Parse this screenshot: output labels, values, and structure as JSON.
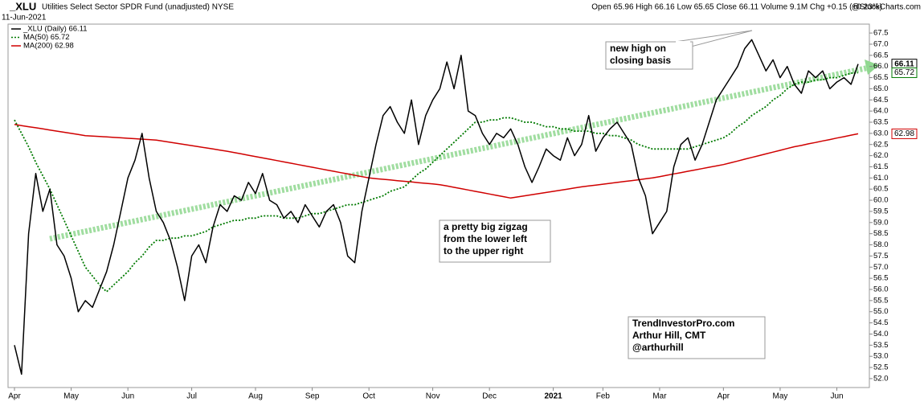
{
  "chart_data": {
    "type": "line",
    "title": "_XLU",
    "subtitle": "Utilities Select Sector SPDR Fund (unadjusted) NYSE",
    "date": "11-Jun-2021",
    "quote": "Open 65.96 High 66.16 Low 65.65 Close 66.11 Volume 9.1M Chg +0.15 (+0.23%)",
    "watermark": "@StockCharts.com",
    "categories": [
      "Apr",
      null,
      null,
      null,
      null,
      null,
      null,
      null,
      "May",
      null,
      null,
      null,
      null,
      null,
      null,
      null,
      "Jun",
      null,
      null,
      null,
      null,
      null,
      null,
      null,
      null,
      "Jul",
      null,
      null,
      null,
      null,
      null,
      null,
      null,
      null,
      "Aug",
      null,
      null,
      null,
      null,
      null,
      null,
      null,
      "Sep",
      null,
      null,
      null,
      null,
      null,
      null,
      null,
      "Oct",
      null,
      null,
      null,
      null,
      null,
      null,
      null,
      null,
      "Nov",
      null,
      null,
      null,
      null,
      null,
      null,
      null,
      "Dec",
      null,
      null,
      null,
      null,
      null,
      null,
      null,
      null,
      "2021",
      null,
      null,
      null,
      null,
      null,
      null,
      "Feb",
      null,
      null,
      null,
      null,
      null,
      null,
      null,
      "Mar",
      null,
      null,
      null,
      null,
      null,
      null,
      null,
      null,
      "Apr",
      null,
      null,
      null,
      null,
      null,
      null,
      null,
      "May",
      null,
      null,
      null,
      null,
      null,
      null,
      null,
      "Jun",
      null,
      null,
      null
    ],
    "series": [
      {
        "name": "_XLU (Daily) 66.11",
        "color": "#000000",
        "style": "solid",
        "values": [
          53.5,
          52.2,
          58.5,
          61.2,
          59.5,
          60.5,
          58.0,
          57.5,
          56.5,
          55.0,
          55.5,
          55.2,
          56.0,
          56.8,
          58.0,
          59.5,
          61.0,
          61.8,
          63.0,
          61.0,
          59.5,
          59.0,
          58.2,
          57.0,
          55.5,
          57.5,
          58.0,
          57.2,
          58.8,
          59.8,
          59.5,
          60.2,
          60.0,
          60.8,
          60.3,
          61.2,
          60.0,
          59.8,
          59.2,
          59.5,
          59.0,
          59.8,
          59.3,
          58.8,
          59.5,
          59.8,
          59.0,
          57.5,
          57.2,
          59.5,
          61.0,
          62.5,
          63.8,
          64.2,
          63.5,
          63.0,
          64.5,
          62.5,
          63.8,
          64.5,
          65.0,
          66.2,
          65.0,
          66.5,
          64.0,
          63.8,
          63.0,
          62.5,
          63.0,
          62.8,
          63.2,
          62.5,
          61.5,
          60.8,
          61.5,
          62.3,
          62.0,
          61.8,
          62.8,
          62.0,
          62.5,
          63.8,
          62.2,
          62.8,
          63.2,
          63.5,
          63.0,
          62.5,
          61.0,
          60.2,
          58.5,
          59.0,
          59.5,
          61.5,
          62.5,
          62.8,
          61.8,
          62.5,
          63.5,
          64.5,
          65.0,
          65.5,
          66.0,
          66.8,
          67.2,
          66.5,
          65.8,
          66.3,
          65.5,
          66.0,
          65.2,
          64.8,
          65.8,
          65.5,
          65.8,
          65.0,
          65.3,
          65.5,
          65.2,
          66.11
        ]
      },
      {
        "name": "MA(50) 65.72",
        "color": "#007a00",
        "style": "dotted",
        "values": [
          63.6,
          63.0,
          62.4,
          61.7,
          61.1,
          60.5,
          59.8,
          59.1,
          58.4,
          57.7,
          57.0,
          56.6,
          56.2,
          55.9,
          56.2,
          56.5,
          56.8,
          57.2,
          57.5,
          57.9,
          58.2,
          58.2,
          58.3,
          58.3,
          58.4,
          58.4,
          58.5,
          58.6,
          58.8,
          58.9,
          59.0,
          59.1,
          59.1,
          59.2,
          59.2,
          59.3,
          59.3,
          59.3,
          59.2,
          59.2,
          59.2,
          59.3,
          59.4,
          59.4,
          59.5,
          59.6,
          59.7,
          59.8,
          59.8,
          59.9,
          60.0,
          60.1,
          60.2,
          60.4,
          60.5,
          60.6,
          60.9,
          61.2,
          61.4,
          61.7,
          62.0,
          62.3,
          62.6,
          62.9,
          63.2,
          63.5,
          63.5,
          63.6,
          63.6,
          63.7,
          63.7,
          63.6,
          63.5,
          63.5,
          63.4,
          63.3,
          63.3,
          63.2,
          63.2,
          63.1,
          63.1,
          63.1,
          63.0,
          63.0,
          62.9,
          62.9,
          62.8,
          62.7,
          62.5,
          62.4,
          62.3,
          62.3,
          62.3,
          62.3,
          62.3,
          62.3,
          62.4,
          62.5,
          62.6,
          62.7,
          62.8,
          63.0,
          63.3,
          63.5,
          63.8,
          64.0,
          64.2,
          64.5,
          64.7,
          65.0,
          65.2,
          65.3,
          65.3,
          65.4,
          65.4,
          65.5,
          65.5,
          65.6,
          65.7,
          65.72
        ]
      },
      {
        "name": "MA(200) 62.98",
        "color": "#d00000",
        "style": "solid",
        "values": [
          63.4,
          63.35,
          63.3,
          63.25,
          63.2,
          63.15,
          63.1,
          63.05,
          63.0,
          62.95,
          62.9,
          62.88,
          62.86,
          62.84,
          62.82,
          62.8,
          62.78,
          62.76,
          62.74,
          62.72,
          62.7,
          62.65,
          62.6,
          62.55,
          62.5,
          62.45,
          62.4,
          62.35,
          62.3,
          62.25,
          62.2,
          62.14,
          62.08,
          62.02,
          61.96,
          61.9,
          61.84,
          61.78,
          61.72,
          61.66,
          61.6,
          61.54,
          61.48,
          61.42,
          61.36,
          61.3,
          61.24,
          61.18,
          61.12,
          61.06,
          61.0,
          60.97,
          60.94,
          60.91,
          60.88,
          60.85,
          60.82,
          60.79,
          60.76,
          60.73,
          60.7,
          60.64,
          60.58,
          60.52,
          60.46,
          60.4,
          60.34,
          60.28,
          60.22,
          60.16,
          60.1,
          60.15,
          60.2,
          60.25,
          60.3,
          60.35,
          60.4,
          60.45,
          60.5,
          60.55,
          60.6,
          60.64,
          60.68,
          60.72,
          60.76,
          60.8,
          60.84,
          60.88,
          60.92,
          60.96,
          61.0,
          61.06,
          61.12,
          61.18,
          61.24,
          61.3,
          61.36,
          61.42,
          61.48,
          61.54,
          61.6,
          61.68,
          61.76,
          61.84,
          61.92,
          62.0,
          62.08,
          62.16,
          62.24,
          62.32,
          62.4,
          62.46,
          62.53,
          62.59,
          62.66,
          62.72,
          62.79,
          62.85,
          62.92,
          62.98
        ]
      }
    ],
    "ylim": [
      51.6,
      67.9
    ],
    "yticks": [
      {
        "value": 52,
        "label": "52.0"
      },
      52.5,
      {
        "value": 53,
        "label": "53.0"
      },
      53.5,
      {
        "value": 54,
        "label": "54.0"
      },
      54.5,
      {
        "value": 55,
        "label": "55.0"
      },
      55.5,
      {
        "value": 56,
        "label": "56.0"
      },
      56.5,
      {
        "value": 57,
        "label": "57.0"
      },
      57.5,
      {
        "value": 58,
        "label": "58.0"
      },
      58.5,
      {
        "value": 59,
        "label": "59.0"
      },
      59.5,
      {
        "value": 60,
        "label": "60.0"
      },
      60.5,
      {
        "value": 61,
        "label": "61.0"
      },
      61.5,
      {
        "value": 62,
        "label": "62.0"
      },
      62.5,
      {
        "value": 63,
        "label": "63.0"
      },
      63.5,
      {
        "value": 64,
        "label": "64.0"
      },
      64.5,
      {
        "value": 65,
        "label": "65.0"
      },
      65.5,
      {
        "value": 66,
        "label": "66.0"
      },
      66.5,
      {
        "value": 67,
        "label": "67.0"
      },
      67.5
    ],
    "grid": false,
    "annotations": [
      {
        "lines": [
          "new high on",
          "closing basis"
        ],
        "color": "#008000"
      },
      {
        "lines": [
          "a pretty big zigzag",
          "from the lower left",
          "to the upper right"
        ],
        "color": "#008000"
      },
      {
        "lines": [
          "TrendInvestorPro.com",
          "Arthur Hill, CMT",
          "@arthurhill"
        ],
        "color": "#1a1aa8"
      }
    ]
  }
}
